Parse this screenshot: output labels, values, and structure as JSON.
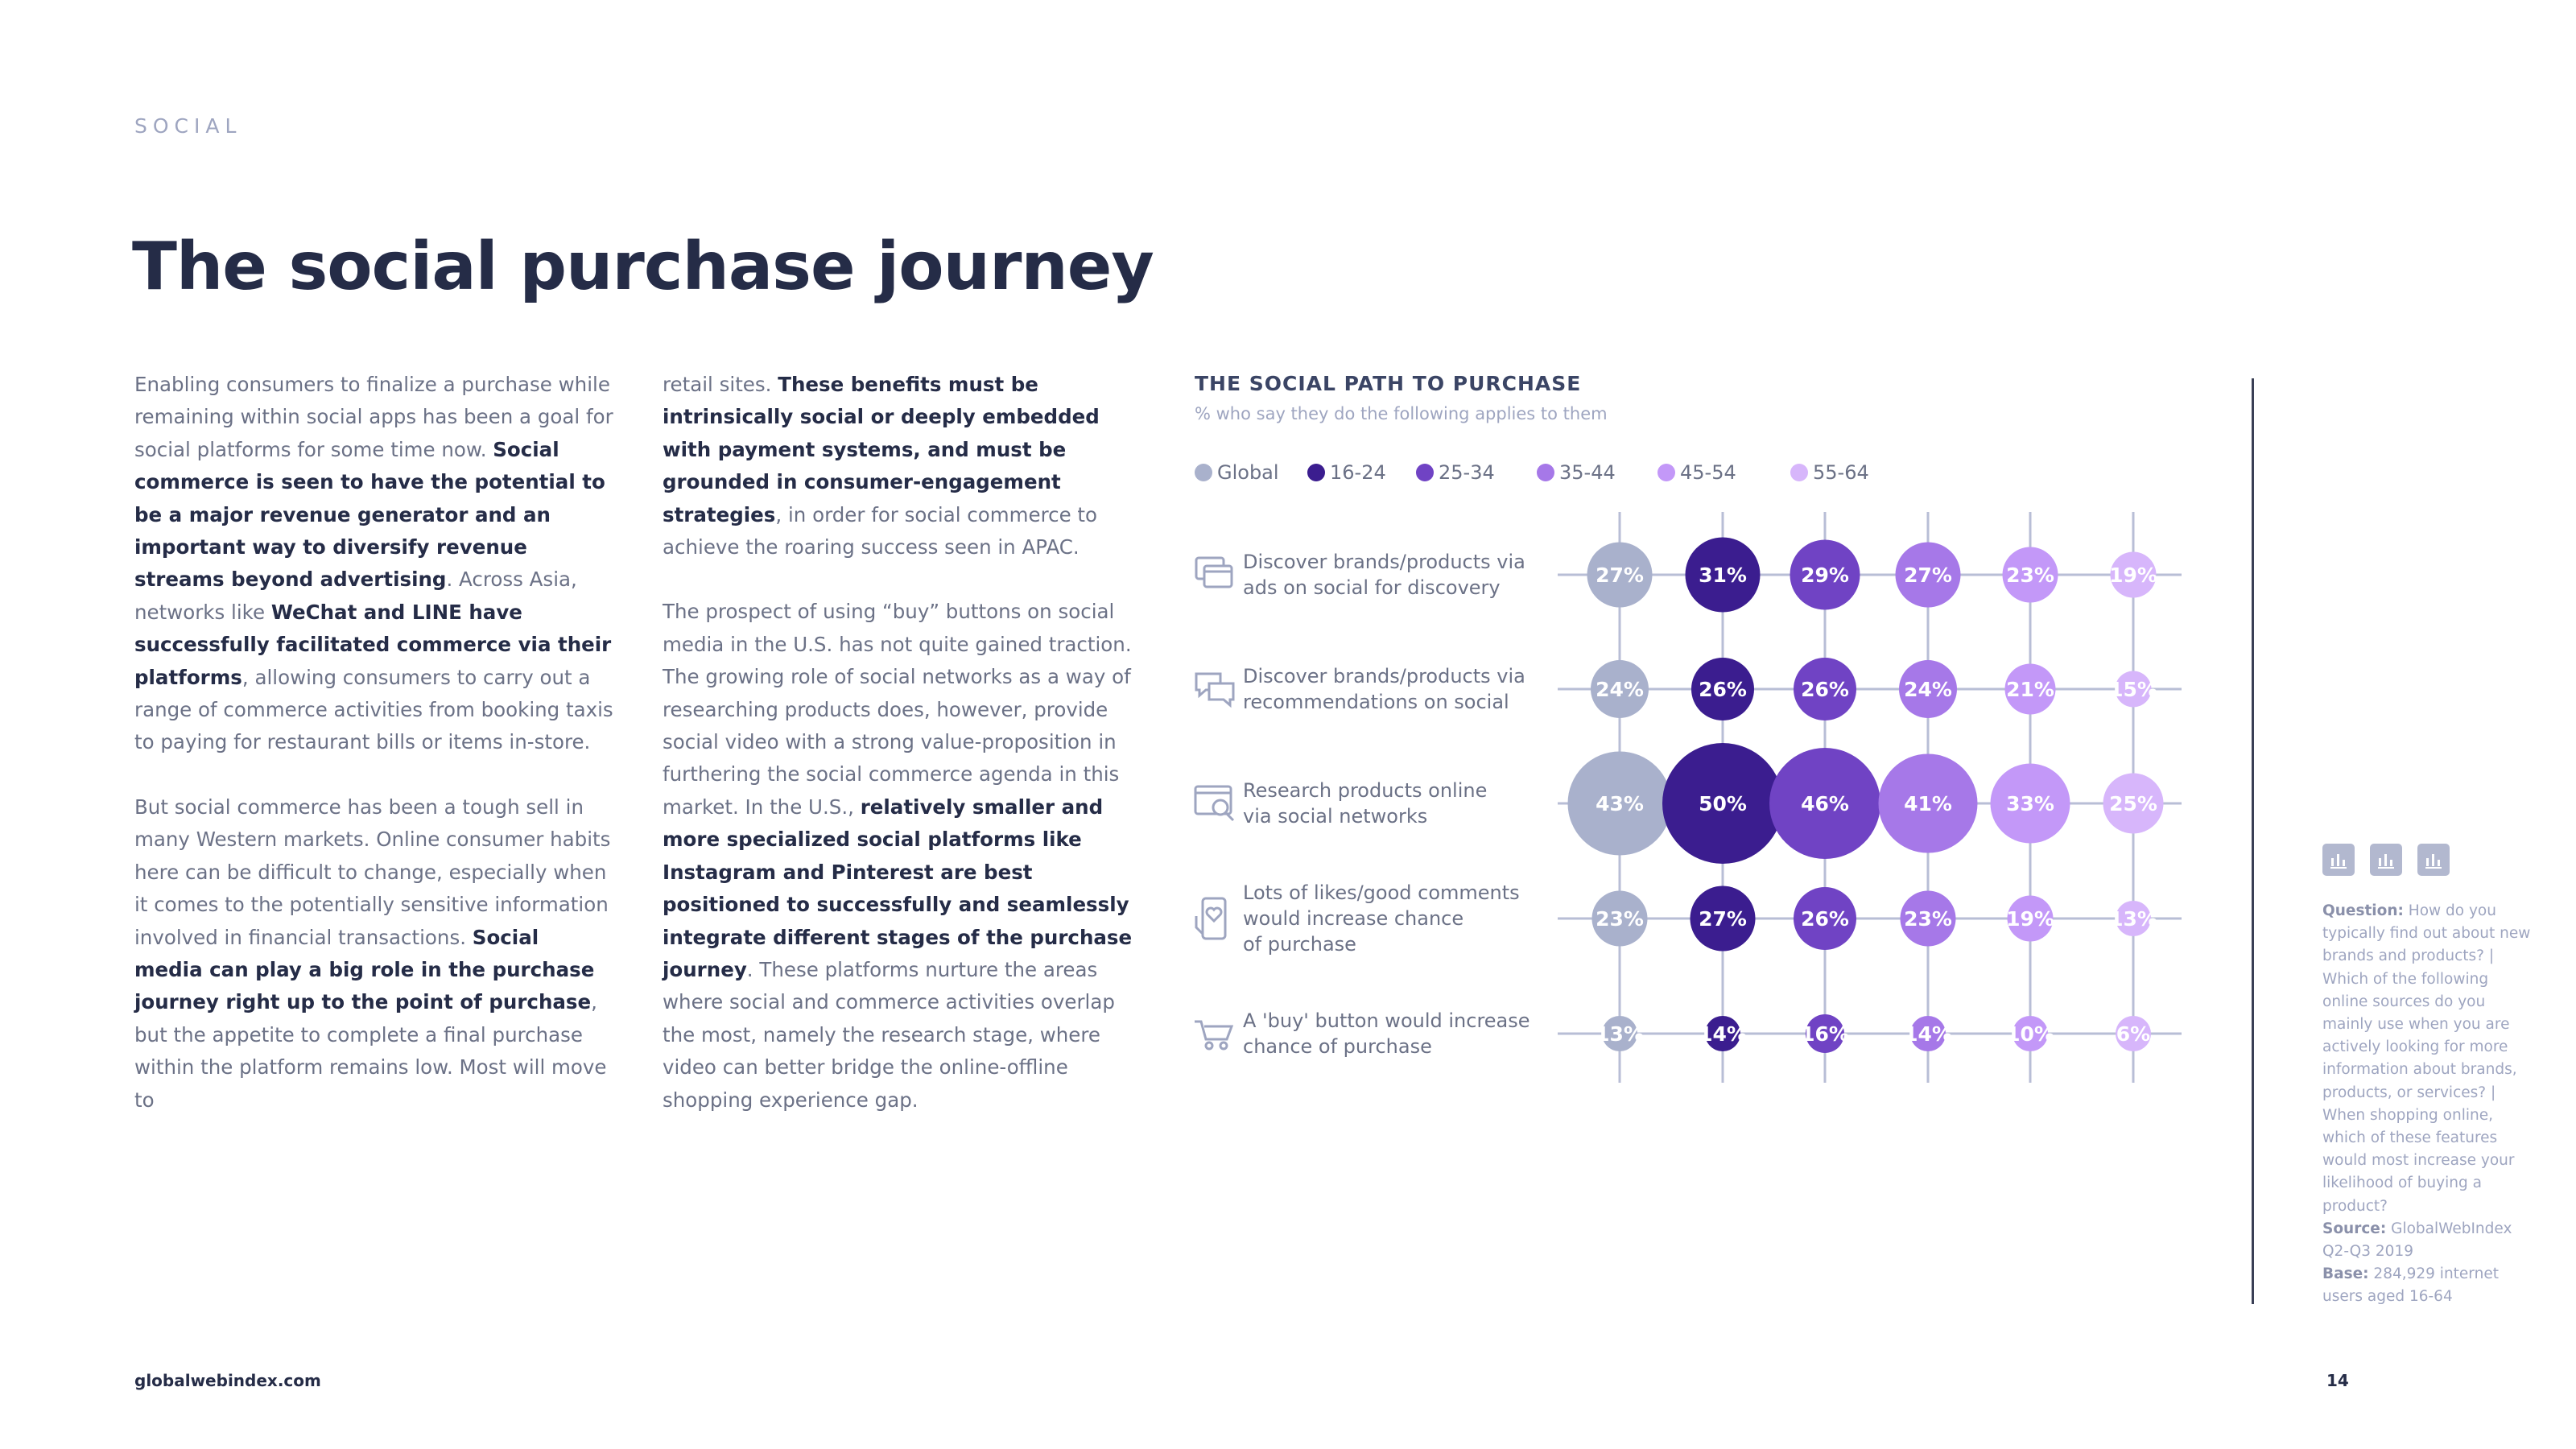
{
  "section": "SOCIAL",
  "title": "The social purchase journey",
  "col1": {
    "p1": [
      {
        "t": "Enabling consumers to finalize a purchase while remaining within social apps has been a goal for social platforms for some time now. ",
        "b": false
      },
      {
        "t": "Social commerce is seen to have the potential to be a major revenue generator and an important way to diversify revenue streams beyond advertising",
        "b": true
      },
      {
        "t": ". Across Asia, networks like ",
        "b": false
      },
      {
        "t": "WeChat and LINE have successfully facilitated commerce via their platforms",
        "b": true
      },
      {
        "t": ", allowing consumers to carry out a range of commerce activities from booking taxis to paying for restaurant bills or items in-store.",
        "b": false
      }
    ],
    "p2": [
      {
        "t": "But social commerce has been a tough sell in many Western markets. Online consumer habits here can be difficult to change, especially when it comes to the potentially sensitive information involved in financial transactions. ",
        "b": false
      },
      {
        "t": "Social media can play a big role in the purchase journey right up to the point of purchase",
        "b": true
      },
      {
        "t": ", but the appetite to complete a final purchase within the platform remains low. Most will move to",
        "b": false
      }
    ]
  },
  "col2": {
    "p1": [
      {
        "t": "retail sites. ",
        "b": false
      },
      {
        "t": "These benefits must be intrinsically social or deeply embedded with payment systems, and must be grounded in consumer-engagement strategies",
        "b": true
      },
      {
        "t": ", in order for social commerce to achieve the roaring success seen in APAC.",
        "b": false
      }
    ],
    "p2": [
      {
        "t": "The prospect of using “buy” buttons on social media in the U.S. has not quite gained traction. The growing role of social networks as a way of researching products does, however, provide social video with a strong value-proposition in furthering the social commerce agenda in this market. In the U.S., ",
        "b": false
      },
      {
        "t": "relatively smaller and more specialized social platforms like Instagram and Pinterest are best positioned to successfully and seamlessly integrate different stages of the purchase journey",
        "b": true
      },
      {
        "t": ". These platforms nurture the areas where social and commerce activities overlap the most, namely the research stage, where video can better bridge the online-offline shopping experience gap.",
        "b": false
      }
    ]
  },
  "chart_data": {
    "type": "bubble-matrix",
    "title": "THE SOCIAL PATH TO PURCHASE",
    "subtitle": "% who say they do the following applies to them",
    "unit": "%",
    "legend_placement": "top-left",
    "series": [
      {
        "name": "Global",
        "color": "#a9b1cc",
        "values": [
          27,
          24,
          43,
          23,
          13
        ]
      },
      {
        "name": "16-24",
        "color": "#3b1d8f",
        "values": [
          31,
          26,
          50,
          27,
          14
        ]
      },
      {
        "name": "25-34",
        "color": "#7043c4",
        "values": [
          29,
          26,
          46,
          26,
          16
        ]
      },
      {
        "name": "35-44",
        "color": "#a678e8",
        "values": [
          27,
          24,
          41,
          23,
          14
        ]
      },
      {
        "name": "45-54",
        "color": "#c398f8",
        "values": [
          23,
          21,
          33,
          19,
          10
        ]
      },
      {
        "name": "55-64",
        "color": "#d7b6fb",
        "values": [
          19,
          15,
          25,
          13,
          6
        ]
      }
    ],
    "categories": [
      {
        "label": [
          "Discover brands/products via",
          "ads on social for discovery"
        ],
        "icon": "ads-windows-icon"
      },
      {
        "label": [
          "Discover brands/products via",
          "recommendations on social"
        ],
        "icon": "chat-bubbles-icon"
      },
      {
        "label": [
          "Research products online",
          "via social networks"
        ],
        "icon": "browser-search-icon"
      },
      {
        "label": [
          "Lots of likes/good comments",
          "would increase chance",
          "of purchase"
        ],
        "icon": "phone-heart-icon"
      },
      {
        "label": [
          "A 'buy' button would increase",
          "chance of purchase"
        ],
        "icon": "shopping-cart-icon"
      }
    ]
  },
  "notes": {
    "question_label": "Question:",
    "question_text": " How do you typically find out about new brands and products? | Which of the following online sources do you mainly use when you are actively looking for more information about brands, products, or services? | When shopping online, which of these features would most increase your likelihood of buying a product?",
    "source_label": "Source:",
    "source_text": " GlobalWebIndex Q2-Q3 2019",
    "base_label": "Base:",
    "base_text": " 284,929 internet users aged 16-64"
  },
  "footer": {
    "url": "globalwebindex.com",
    "page": "14"
  },
  "side_icons": [
    "bar-chart-icon",
    "bar-chart-icon",
    "bar-chart-icon"
  ]
}
